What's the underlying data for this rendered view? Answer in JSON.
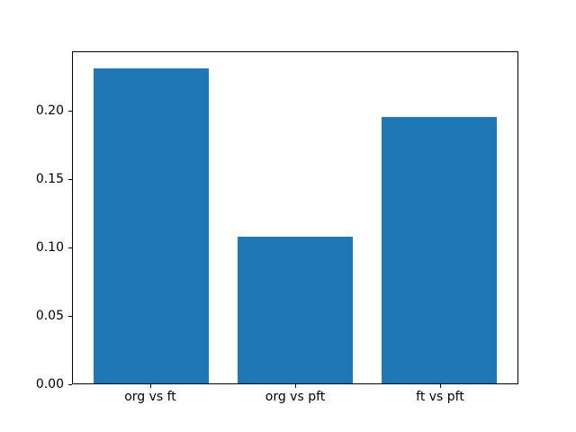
{
  "figure": {
    "background": "#ffffff",
    "spine_color": "#000000",
    "tick_color": "#000000"
  },
  "chart_data": {
    "type": "bar",
    "title": "",
    "xlabel": "",
    "ylabel": "",
    "categories": [
      "org vs ft",
      "org vs pft",
      "ft vs pft"
    ],
    "values": [
      0.232,
      0.108,
      0.196
    ],
    "bar_color": "#1f77b4",
    "bar_width_fraction": 0.8,
    "xlim": [
      -0.54,
      2.54
    ],
    "ylim": [
      0,
      0.2436
    ],
    "yticks": [
      0.0,
      0.05,
      0.1,
      0.15,
      0.2
    ],
    "ytick_labels": [
      "0.00",
      "0.05",
      "0.10",
      "0.15",
      "0.20"
    ],
    "grid": false,
    "legend": false
  }
}
